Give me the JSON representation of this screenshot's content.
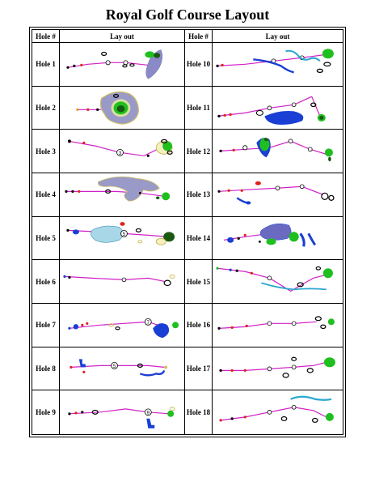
{
  "title": "Royal Golf Course Layout",
  "headers": {
    "hole": "Hole #",
    "layout": "Lay out"
  },
  "colors": {
    "fairway_line": "#d020c8",
    "green": "#1fbf1f",
    "water": "#1a3fd4",
    "bunker": "#6b6b9a",
    "trees": "#1a5a10",
    "tee_red": "#e0201a"
  },
  "holes": [
    {
      "label": "Hole 1"
    },
    {
      "label": "Hole 2"
    },
    {
      "label": "Hole 3"
    },
    {
      "label": "Hole 4"
    },
    {
      "label": "Hole 5"
    },
    {
      "label": "Hole 6"
    },
    {
      "label": "Hole 7"
    },
    {
      "label": "Hole 8"
    },
    {
      "label": "Hole 9"
    },
    {
      "label": "Hole 10"
    },
    {
      "label": "Hole 11"
    },
    {
      "label": "Hole 12"
    },
    {
      "label": "Hole 13"
    },
    {
      "label": "Hole 14"
    },
    {
      "label": "Hole 15"
    },
    {
      "label": "Hole 16"
    },
    {
      "label": "Hole 17"
    },
    {
      "label": "Hole 18"
    }
  ],
  "distance_markers": {
    "hole3": "3",
    "hole5": "5",
    "hole7": "7",
    "hole8": "5",
    "hole9": "9"
  }
}
